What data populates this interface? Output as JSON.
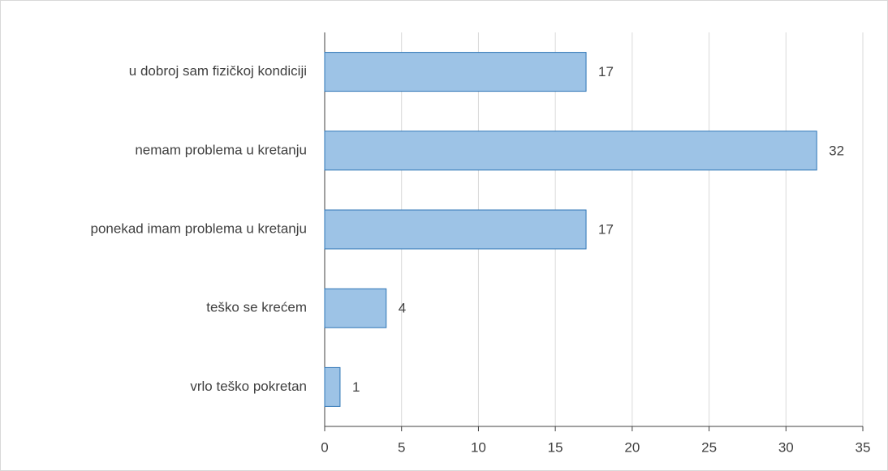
{
  "chart_data": {
    "type": "hbar",
    "categories": [
      "u dobroj sam fizičkoj kondiciji",
      "nemam problema u kretanju",
      "ponekad imam problema u kretanju",
      "teško se krećem",
      "vrlo teško pokretan"
    ],
    "values": [
      17,
      32,
      17,
      4,
      1
    ],
    "color": "#9dc3e6",
    "xlim": [
      0,
      35
    ],
    "xticks": [
      0,
      5,
      10,
      15,
      20,
      25,
      30,
      35
    ],
    "grid": true
  }
}
